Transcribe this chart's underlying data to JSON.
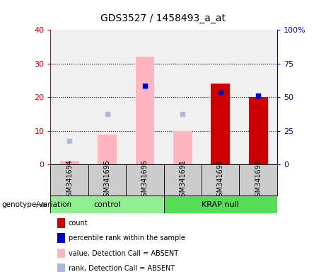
{
  "title": "GDS3527 / 1458493_a_at",
  "samples": [
    "GSM341694",
    "GSM341695",
    "GSM341696",
    "GSM341691",
    "GSM341692",
    "GSM341693"
  ],
  "absent_value_bars": [
    1.2,
    9.0,
    32.0,
    10.0,
    0,
    0
  ],
  "absent_rank_dots_left": [
    7.0,
    15.0,
    23.0,
    15.0,
    0,
    0
  ],
  "present_count_bars": [
    0,
    0,
    0,
    0,
    24.0,
    20.0
  ],
  "present_rank_dots_left": [
    0,
    0,
    23.5,
    0,
    21.5,
    20.5
  ],
  "ylim_left": [
    0,
    40
  ],
  "ylim_right": [
    0,
    100
  ],
  "yticks_left": [
    0,
    10,
    20,
    30,
    40
  ],
  "yticks_right": [
    0,
    25,
    50,
    75,
    100
  ],
  "ytick_labels_right": [
    "0",
    "25",
    "50",
    "75",
    "100%"
  ],
  "absent_bar_color": "#ffb6c1",
  "absent_dot_color": "#b0b8d8",
  "present_bar_color": "#cc0000",
  "present_dot_color": "#0000bb",
  "left_axis_color": "#cc0000",
  "right_axis_color": "#0000bb",
  "bar_width": 0.5,
  "plot_bg": "#f0f0f0",
  "genotype_label": "genotype/variation",
  "legend_items": [
    {
      "label": "count",
      "color": "#cc0000"
    },
    {
      "label": "percentile rank within the sample",
      "color": "#0000bb"
    },
    {
      "label": "value, Detection Call = ABSENT",
      "color": "#ffb6c1"
    },
    {
      "label": "rank, Detection Call = ABSENT",
      "color": "#b0b8d8"
    }
  ]
}
